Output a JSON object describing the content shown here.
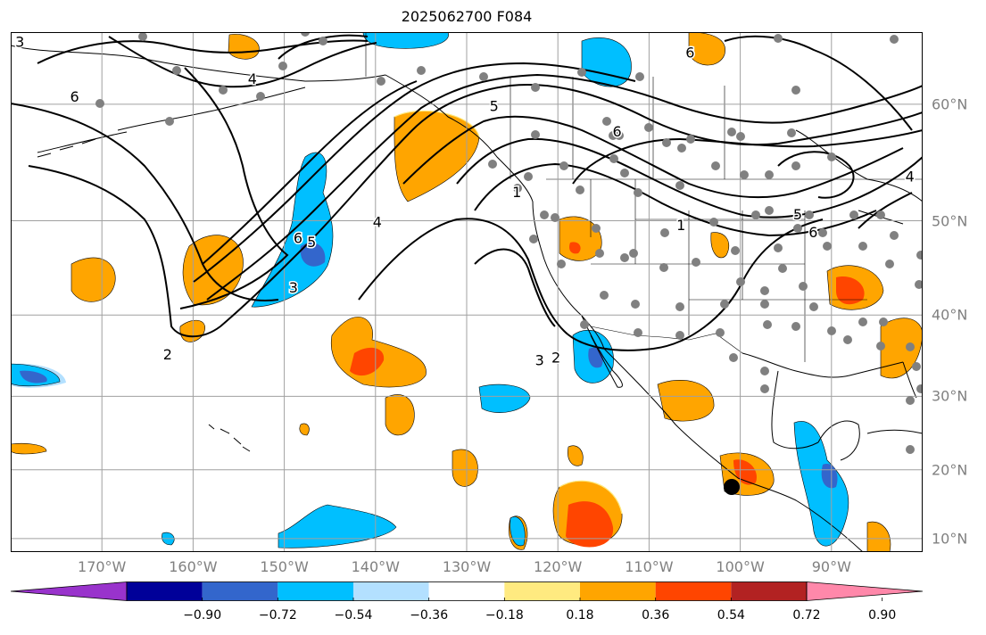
{
  "title": "2025062700 F084",
  "map": {
    "lon_range": [
      -180,
      -80
    ],
    "lat_range": [
      8,
      65
    ],
    "grid_lons": [
      -170,
      -160,
      -150,
      -140,
      -130,
      -120,
      -110,
      -100,
      -90
    ],
    "grid_lats": [
      10,
      20,
      30,
      40,
      50,
      60
    ],
    "lon_labels": [
      "170°W",
      "160°W",
      "150°W",
      "140°W",
      "130°W",
      "120°W",
      "110°W",
      "100°W",
      "90°W"
    ],
    "lat_labels": [
      "10°N",
      "20°N",
      "30°N",
      "40°N",
      "50°N",
      "60°N"
    ],
    "contour_labels": [
      {
        "text": "4",
        "lon": -153.5,
        "lat": 61.8
      },
      {
        "text": "5",
        "lon": -127.0,
        "lat": 59.8
      },
      {
        "text": "6",
        "lon": -105.5,
        "lat": 63.6
      },
      {
        "text": "6",
        "lon": -113.5,
        "lat": 57.8
      },
      {
        "text": "6",
        "lon": -173.0,
        "lat": 60.5
      },
      {
        "text": "6",
        "lon": -148.5,
        "lat": 48.2
      },
      {
        "text": "5",
        "lon": -147.0,
        "lat": 47.8
      },
      {
        "text": "4",
        "lon": -139.8,
        "lat": 49.8
      },
      {
        "text": "3",
        "lon": -149.0,
        "lat": 43.0
      },
      {
        "text": "2",
        "lon": -162.8,
        "lat": 35.2
      },
      {
        "text": "1",
        "lon": -124.5,
        "lat": 52.6
      },
      {
        "text": "1",
        "lon": -106.5,
        "lat": 49.5
      },
      {
        "text": "5",
        "lon": -93.7,
        "lat": 50.5
      },
      {
        "text": "6",
        "lon": -92.0,
        "lat": 48.8
      },
      {
        "text": "4",
        "lon": -81.4,
        "lat": 54.0
      },
      {
        "text": "3",
        "lon": -122.0,
        "lat": 34.5
      },
      {
        "text": "2",
        "lon": -120.2,
        "lat": 34.8
      },
      {
        "text": "3",
        "lon": -179.0,
        "lat": 64.3
      }
    ],
    "colors": {
      "grid": "#a0a0a0",
      "coast": "#000000",
      "contour": "#000000",
      "station": "#808080"
    }
  },
  "colorbar": {
    "colors": [
      "#9933cc",
      "#000099",
      "#3366cc",
      "#00bfff",
      "#b3e0ff",
      "#ffffff",
      "#ffea80",
      "#ffa500",
      "#ff4500",
      "#b22222",
      "#ff88aa"
    ],
    "labels": [
      "−0.90",
      "−0.72",
      "−0.54",
      "−0.36",
      "−0.18",
      "0.18",
      "0.36",
      "0.54",
      "0.72",
      "0.90"
    ]
  }
}
